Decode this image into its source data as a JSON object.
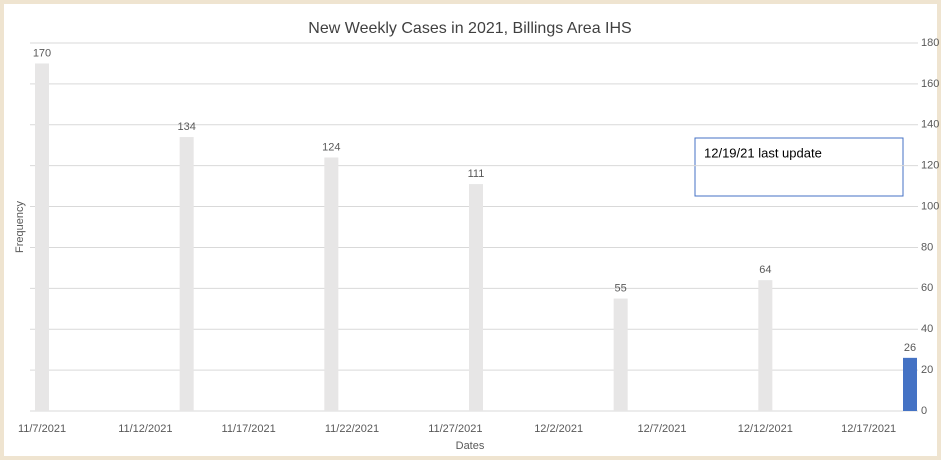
{
  "chart_data": {
    "type": "bar",
    "title": "New Weekly Cases in 2021, Billings Area IHS",
    "x_label": "Dates",
    "y_label": "Frequency",
    "x": [
      "11/7/2021",
      "11/14/2021",
      "11/21/2021",
      "11/28/2021",
      "12/5/2021",
      "12/12/2021",
      "12/19/2021"
    ],
    "values": [
      170,
      134,
      124,
      111,
      55,
      64,
      26
    ],
    "colors": [
      "#e7e6e6",
      "#e7e6e6",
      "#e7e6e6",
      "#e7e6e6",
      "#e7e6e6",
      "#e7e6e6",
      "#4472c4"
    ],
    "xlim": [
      "11/7/2021",
      "12/19/2021"
    ],
    "xticks": [
      "11/7/2021",
      "11/12/2021",
      "11/17/2021",
      "11/22/2021",
      "11/27/2021",
      "12/2/2021",
      "12/7/2021",
      "12/12/2021",
      "12/17/2021"
    ],
    "ylim": [
      0,
      180
    ],
    "yticks": [
      0,
      20,
      40,
      60,
      80,
      100,
      120,
      140,
      160,
      180
    ],
    "grid": true,
    "annotation": "12/19/21  last update"
  }
}
